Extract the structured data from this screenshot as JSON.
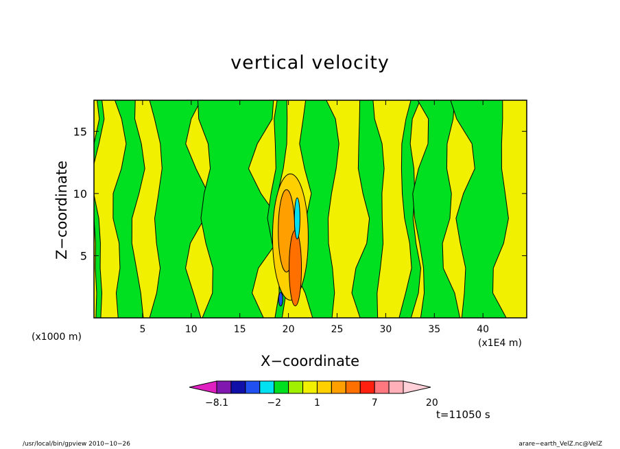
{
  "chart_data": {
    "type": "heatmap",
    "title": "vertical velocity",
    "xlabel": "X−coordinate",
    "ylabel": "Z−coordinate",
    "x_unit_left": "(x1000 m)",
    "x_unit_right": "(x1E4 m)",
    "xlim": [
      0,
      44.5
    ],
    "ylim": [
      0,
      17.5
    ],
    "x_ticks": [
      5,
      10,
      15,
      20,
      25,
      30,
      35,
      40
    ],
    "y_ticks": [
      5,
      10,
      15
    ],
    "colorbar": {
      "levels": [
        -8.1,
        -6,
        -4,
        -3,
        -2,
        -1,
        0,
        1,
        2,
        3,
        5,
        7,
        10,
        13,
        16,
        20
      ],
      "tick_labels": [
        "−8.1",
        "−2",
        "1",
        "7",
        "20"
      ],
      "tick_values": [
        -8.1,
        -2,
        1,
        7,
        20
      ],
      "colors": [
        "#e020c0",
        "#8018b0",
        "#1010a8",
        "#2050f0",
        "#00e0f0",
        "#00e020",
        "#a0f000",
        "#f0f000",
        "#ffd000",
        "#ffa000",
        "#ff7000",
        "#ff2010",
        "#ff7880",
        "#ffb0b8",
        "#ffd0d8"
      ]
    },
    "fields": {
      "green_zones_x": [
        [
          0,
          0.4
        ],
        [
          2.5,
          4.5
        ],
        [
          6.5,
          10.5
        ],
        [
          11.5,
          17.5
        ],
        [
          18.5,
          19.5
        ],
        [
          21.5,
          24.5
        ],
        [
          27.5,
          29.5
        ],
        [
          32.0,
          33.0
        ],
        [
          33.5,
          36.5
        ],
        [
          38.0,
          42.0
        ]
      ],
      "updraft_core": {
        "x": 20.2,
        "z": 6.5,
        "max": 7
      },
      "downdraft_core": {
        "x": 20.9,
        "z": 8.0,
        "min": -2
      }
    }
  },
  "time_label": "t=11050 s",
  "footer": {
    "left": "/usr/local/bin/gpview   2010−10−26",
    "right": "arare−earth_VelZ.nc@VelZ"
  }
}
